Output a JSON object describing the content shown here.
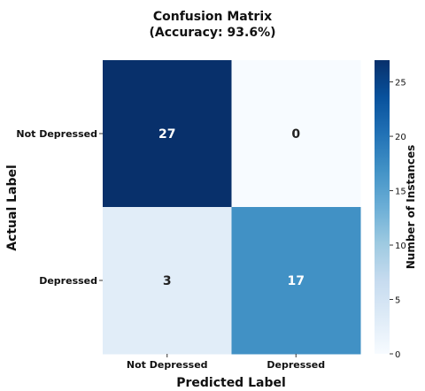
{
  "chart_data": {
    "type": "heatmap",
    "title": "Confusion Matrix",
    "subtitle": "(Accuracy: 93.6%)",
    "xlabel": "Predicted Label",
    "ylabel": "Actual Label",
    "x_categories": [
      "Not Depressed",
      "Depressed"
    ],
    "y_categories": [
      "Not Depressed",
      "Depressed"
    ],
    "values": [
      [
        27,
        0
      ],
      [
        3,
        17
      ]
    ],
    "colorbar": {
      "label": "Number of Instances",
      "range": [
        0,
        27
      ],
      "ticks": [
        0,
        5,
        10,
        15,
        20,
        25
      ],
      "colormap": [
        "#f7fbff",
        "#deebf7",
        "#c6dbef",
        "#9ecae1",
        "#6baed6",
        "#4292c6",
        "#2171b5",
        "#08519c",
        "#08306b"
      ]
    }
  }
}
